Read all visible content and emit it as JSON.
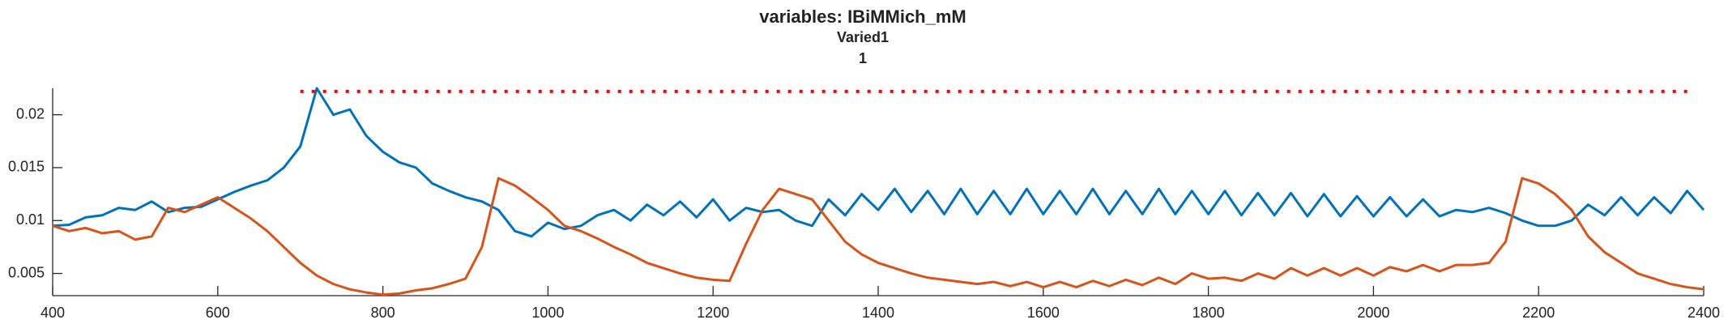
{
  "chart_data": {
    "type": "line",
    "title": "variables: IBiMMich_mM",
    "subtitle": "Varied1",
    "subtitle2": "1",
    "x": [
      400,
      420,
      440,
      460,
      480,
      500,
      520,
      540,
      560,
      580,
      600,
      620,
      640,
      660,
      680,
      700,
      720,
      740,
      760,
      780,
      800,
      820,
      840,
      860,
      880,
      900,
      920,
      940,
      960,
      980,
      1000,
      1020,
      1040,
      1060,
      1080,
      1100,
      1120,
      1140,
      1160,
      1180,
      1200,
      1220,
      1240,
      1260,
      1280,
      1300,
      1320,
      1340,
      1360,
      1380,
      1400,
      1420,
      1440,
      1460,
      1480,
      1500,
      1520,
      1540,
      1560,
      1580,
      1600,
      1620,
      1640,
      1660,
      1680,
      1700,
      1720,
      1740,
      1760,
      1780,
      1800,
      1820,
      1840,
      1860,
      1880,
      1900,
      1920,
      1940,
      1960,
      1980,
      2000,
      2020,
      2040,
      2060,
      2080,
      2100,
      2120,
      2140,
      2160,
      2180,
      2200,
      2220,
      2240,
      2260,
      2280,
      2300,
      2320,
      2340,
      2360,
      2380,
      2400
    ],
    "series": [
      {
        "color": "#0072BD",
        "values": [
          0.0095,
          0.0096,
          0.0103,
          0.0105,
          0.0112,
          0.011,
          0.0118,
          0.0108,
          0.0112,
          0.0113,
          0.012,
          0.0127,
          0.0133,
          0.0138,
          0.015,
          0.017,
          0.0225,
          0.02,
          0.0205,
          0.018,
          0.0165,
          0.0155,
          0.015,
          0.0135,
          0.0128,
          0.0122,
          0.0118,
          0.011,
          0.009,
          0.0085,
          0.0098,
          0.0092,
          0.0095,
          0.0105,
          0.011,
          0.01,
          0.0115,
          0.0105,
          0.0118,
          0.0103,
          0.012,
          0.01,
          0.0112,
          0.0108,
          0.011,
          0.01,
          0.0095,
          0.012,
          0.0105,
          0.0125,
          0.011,
          0.013,
          0.0108,
          0.0128,
          0.0106,
          0.013,
          0.0106,
          0.0128,
          0.0106,
          0.013,
          0.0106,
          0.0128,
          0.0106,
          0.013,
          0.0106,
          0.0128,
          0.0106,
          0.013,
          0.0106,
          0.0128,
          0.0106,
          0.0128,
          0.0105,
          0.0126,
          0.0105,
          0.0126,
          0.0104,
          0.0125,
          0.0104,
          0.0123,
          0.0104,
          0.0122,
          0.0104,
          0.012,
          0.0104,
          0.011,
          0.0108,
          0.0112,
          0.0107,
          0.01,
          0.0095,
          0.0095,
          0.01,
          0.0115,
          0.0105,
          0.0122,
          0.0105,
          0.0122,
          0.0107,
          0.0128,
          0.011
        ]
      },
      {
        "color": "#D95319",
        "values": [
          0.0095,
          0.009,
          0.0093,
          0.0088,
          0.009,
          0.0082,
          0.0085,
          0.0112,
          0.0108,
          0.0115,
          0.0122,
          0.0112,
          0.0102,
          0.009,
          0.0075,
          0.006,
          0.0048,
          0.004,
          0.0035,
          0.0032,
          0.003,
          0.0031,
          0.0034,
          0.0036,
          0.004,
          0.0045,
          0.0075,
          0.014,
          0.0133,
          0.0122,
          0.011,
          0.0095,
          0.009,
          0.0083,
          0.0075,
          0.0068,
          0.006,
          0.0055,
          0.005,
          0.0046,
          0.0044,
          0.0043,
          0.0078,
          0.011,
          0.013,
          0.0125,
          0.012,
          0.01,
          0.008,
          0.0068,
          0.006,
          0.0055,
          0.005,
          0.0046,
          0.0044,
          0.0042,
          0.004,
          0.0042,
          0.0038,
          0.0042,
          0.0037,
          0.0042,
          0.0037,
          0.0043,
          0.0038,
          0.0044,
          0.0039,
          0.0046,
          0.004,
          0.005,
          0.0045,
          0.0046,
          0.0043,
          0.005,
          0.0045,
          0.0055,
          0.0048,
          0.0055,
          0.0048,
          0.0055,
          0.0048,
          0.0056,
          0.0052,
          0.0058,
          0.0052,
          0.0058,
          0.0058,
          0.006,
          0.008,
          0.014,
          0.0135,
          0.0125,
          0.011,
          0.0085,
          0.007,
          0.006,
          0.005,
          0.0045,
          0.004,
          0.0037,
          0.0035
        ]
      },
      {
        "color": "#FF0000",
        "dotted": true,
        "x": [
          700,
          2380
        ],
        "values": [
          0.0222,
          0.0222
        ]
      }
    ],
    "xlim": [
      400,
      2400
    ],
    "xticks": [
      400,
      600,
      800,
      1000,
      1200,
      1400,
      1600,
      1800,
      2000,
      2200,
      2400
    ],
    "ylim": [
      0.0029,
      0.0225
    ],
    "yticks": [
      0.005,
      0.01,
      0.015,
      0.02
    ]
  }
}
